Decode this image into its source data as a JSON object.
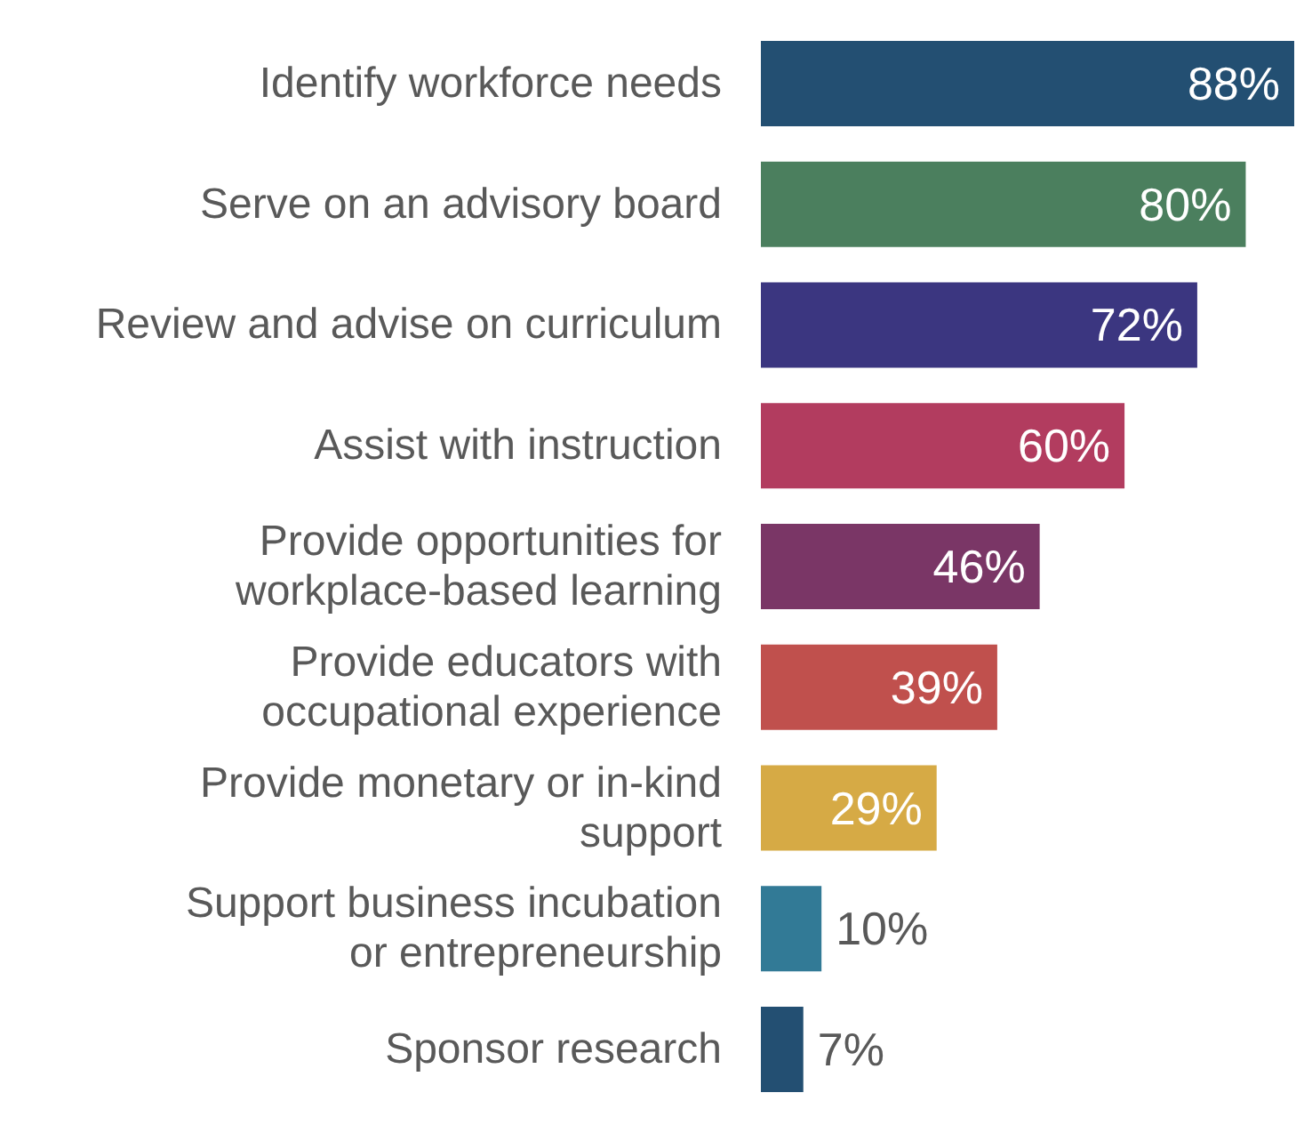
{
  "chart_data": {
    "type": "bar",
    "orientation": "horizontal",
    "categories": [
      "Identify workforce needs",
      "Serve on an advisory board",
      "Review and advise on curriculum",
      "Assist with instruction",
      "Provide opportunities for\nworkplace-based learning",
      "Provide educators with\noccupational experience",
      "Provide monetary or in-kind\nsupport",
      "Support business incubation\nor entrepreneurship",
      "Sponsor research"
    ],
    "values": [
      88,
      80,
      72,
      60,
      46,
      39,
      29,
      10,
      7
    ],
    "colors": [
      "#234f72",
      "#4b7f5e",
      "#3b3680",
      "#b23c5f",
      "#7a3666",
      "#c0504d",
      "#d6aa45",
      "#327a96",
      "#234f72"
    ],
    "value_labels": [
      "88%",
      "80%",
      "72%",
      "60%",
      "46%",
      "39%",
      "29%",
      "10%",
      "7%"
    ]
  }
}
